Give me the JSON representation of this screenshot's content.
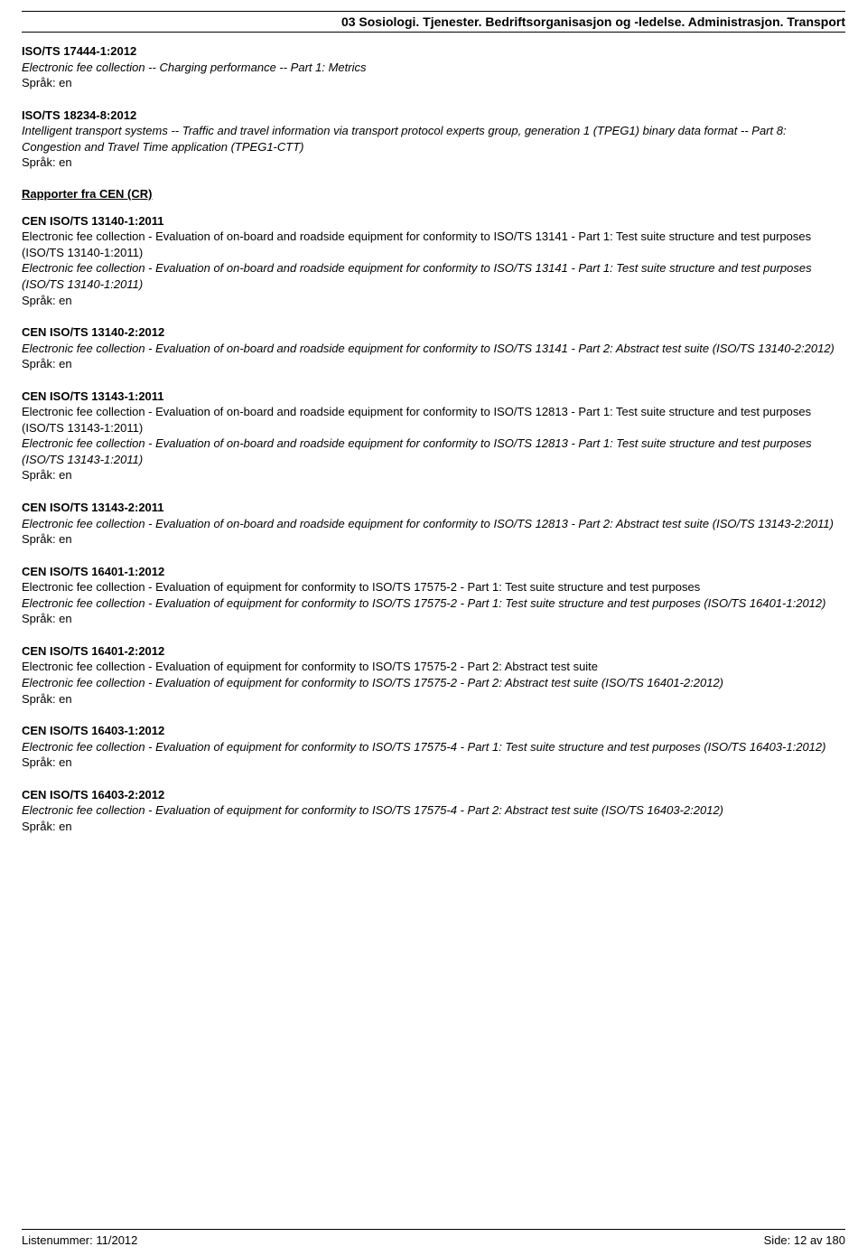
{
  "header": {
    "category": "03  Sosiologi. Tjenester. Bedriftsorganisasjon og -ledelse. Administrasjon. Transport"
  },
  "intro_entries": [
    {
      "code": "ISO/TS 17444-1:2012",
      "lines": [
        {
          "text": "Electronic fee collection -- Charging performance -- Part 1: Metrics",
          "italic": true
        }
      ],
      "lang": "Språk: en"
    },
    {
      "code": "ISO/TS 18234-8:2012",
      "lines": [
        {
          "text": "Intelligent transport systems -- Traffic and travel information via transport protocol experts group, generation 1 (TPEG1) binary data format -- Part 8: Congestion and Travel Time application (TPEG1-CTT)",
          "italic": true
        }
      ],
      "lang": "Språk: en"
    }
  ],
  "section_heading": "Rapporter fra CEN (CR)",
  "entries": [
    {
      "code": "CEN ISO/TS 13140-1:2011",
      "lines": [
        {
          "text": "Electronic fee collection - Evaluation of on-board and roadside equipment for conformity to ISO/TS 13141 - Part 1: Test suite structure and test purposes (ISO/TS 13140-1:2011)",
          "italic": false
        },
        {
          "text": "Electronic fee collection - Evaluation of on-board and roadside equipment for conformity to ISO/TS 13141 - Part 1: Test suite structure and test purposes (ISO/TS 13140-1:2011)",
          "italic": true
        }
      ],
      "lang": "Språk: en"
    },
    {
      "code": "CEN ISO/TS 13140-2:2012",
      "lines": [
        {
          "text": "Electronic fee collection - Evaluation of on-board and roadside equipment for conformity to ISO/TS 13141 - Part 2: Abstract test suite (ISO/TS 13140-2:2012)",
          "italic": true
        }
      ],
      "lang": "Språk: en"
    },
    {
      "code": "CEN ISO/TS 13143-1:2011",
      "lines": [
        {
          "text": "Electronic fee collection - Evaluation of on-board and roadside equipment for conformity to ISO/TS 12813 - Part 1: Test suite structure and test purposes (ISO/TS 13143-1:2011)",
          "italic": false
        },
        {
          "text": "Electronic fee collection - Evaluation of on-board and roadside equipment for conformity to ISO/TS 12813 - Part 1: Test suite structure and test purposes (ISO/TS 13143-1:2011)",
          "italic": true
        }
      ],
      "lang": "Språk: en"
    },
    {
      "code": "CEN ISO/TS 13143-2:2011",
      "lines": [
        {
          "text": "Electronic fee collection - Evaluation of on-board and roadside equipment for conformity to ISO/TS 12813 - Part 2: Abstract test suite (ISO/TS 13143-2:2011)",
          "italic": true
        }
      ],
      "lang": "Språk: en"
    },
    {
      "code": "CEN ISO/TS 16401-1:2012",
      "lines": [
        {
          "text": "Electronic fee collection - Evaluation of equipment for conformity to ISO/TS 17575-2 - Part 1: Test suite structure and test purposes",
          "italic": false
        },
        {
          "text": "Electronic fee collection - Evaluation of equipment for conformity to ISO/TS 17575-2 - Part 1: Test suite structure and test purposes (ISO/TS 16401-1:2012)",
          "italic": true
        }
      ],
      "lang": "Språk: en"
    },
    {
      "code": "CEN ISO/TS 16401-2:2012",
      "lines": [
        {
          "text": "Electronic fee collection - Evaluation of equipment for conformity to ISO/TS 17575-2 - Part 2: Abstract test suite",
          "italic": false
        },
        {
          "text": "Electronic fee collection - Evaluation of equipment for conformity to ISO/TS 17575-2 - Part 2: Abstract test suite (ISO/TS 16401-2:2012)",
          "italic": true
        }
      ],
      "lang": "Språk: en"
    },
    {
      "code": "CEN ISO/TS 16403-1:2012",
      "lines": [
        {
          "text": "Electronic fee collection - Evaluation of equipment for conformity to ISO/TS 17575-4 - Part 1: Test suite structure and test purposes (ISO/TS 16403-1:2012)",
          "italic": true
        }
      ],
      "lang": "Språk: en"
    },
    {
      "code": "CEN ISO/TS 16403-2:2012",
      "lines": [
        {
          "text": "Electronic fee collection - Evaluation of equipment for conformity to ISO/TS 17575-4 - Part 2: Abstract test suite (ISO/TS 16403-2:2012)",
          "italic": true
        }
      ],
      "lang": "Språk: en"
    }
  ],
  "footer": {
    "left": "Listenummer: 11/2012",
    "right": "Side: 12 av 180"
  }
}
